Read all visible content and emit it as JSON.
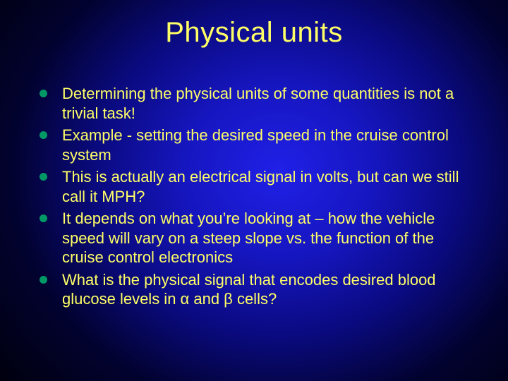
{
  "slide": {
    "title": "Physical units",
    "title_color": "#ffff66",
    "text_color": "#ffff66",
    "bullet_color": "#009966",
    "title_fontsize": 40,
    "body_fontsize": 22,
    "background": {
      "type": "radial-gradient",
      "center_color": "#2020e8",
      "edge_color": "#000008"
    },
    "bullets": [
      "Determining the physical units of some quantities is not a trivial task!",
      "Example - setting the desired speed in the cruise control system",
      "This is actually an electrical signal in volts, but can we still call it MPH?",
      "It depends on what you’re looking at – how the vehicle speed will vary on a steep slope vs. the function of the cruise control electronics",
      "What is the physical signal that encodes desired blood glucose levels in α and β cells?"
    ]
  }
}
